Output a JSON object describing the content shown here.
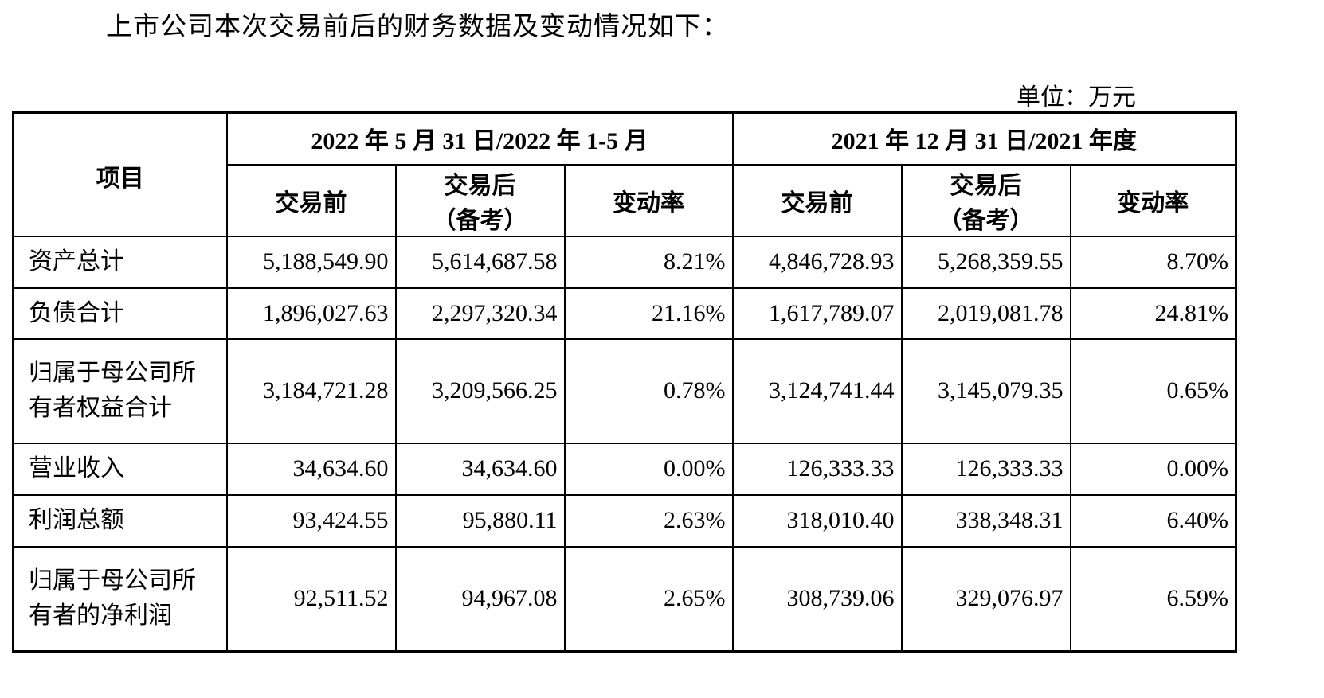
{
  "intro": "上市公司本次交易前后的财务数据及变动情况如下：",
  "unit": "单位：万元",
  "table": {
    "header": {
      "item": "项目",
      "groups": [
        "2022 年 5 月 31 日/2022 年 1-5 月",
        "2021 年 12 月 31 日/2021 年度"
      ],
      "subheaders": [
        [
          "交易前"
        ],
        [
          "交易后",
          "（备考）"
        ],
        [
          "变动率"
        ],
        [
          "交易前"
        ],
        [
          "交易后",
          "（备考）"
        ],
        [
          "变动率"
        ]
      ]
    },
    "rows": [
      [
        "资产总计",
        "5,188,549.90",
        "5,614,687.58",
        "8.21%",
        "4,846,728.93",
        "5,268,359.55",
        "8.70%"
      ],
      [
        "负债合计",
        "1,896,027.63",
        "2,297,320.34",
        "21.16%",
        "1,617,789.07",
        "2,019,081.78",
        "24.81%"
      ],
      [
        "归属于母公司所有者权益合计",
        "3,184,721.28",
        "3,209,566.25",
        "0.78%",
        "3,124,741.44",
        "3,145,079.35",
        "0.65%"
      ],
      [
        "营业收入",
        "34,634.60",
        "34,634.60",
        "0.00%",
        "126,333.33",
        "126,333.33",
        "0.00%"
      ],
      [
        "利润总额",
        "93,424.55",
        "95,880.11",
        "2.63%",
        "318,010.40",
        "338,348.31",
        "6.40%"
      ],
      [
        "归属于母公司所有者的净利润",
        "92,511.52",
        "94,967.08",
        "2.65%",
        "308,739.06",
        "329,076.97",
        "6.59%"
      ]
    ]
  }
}
